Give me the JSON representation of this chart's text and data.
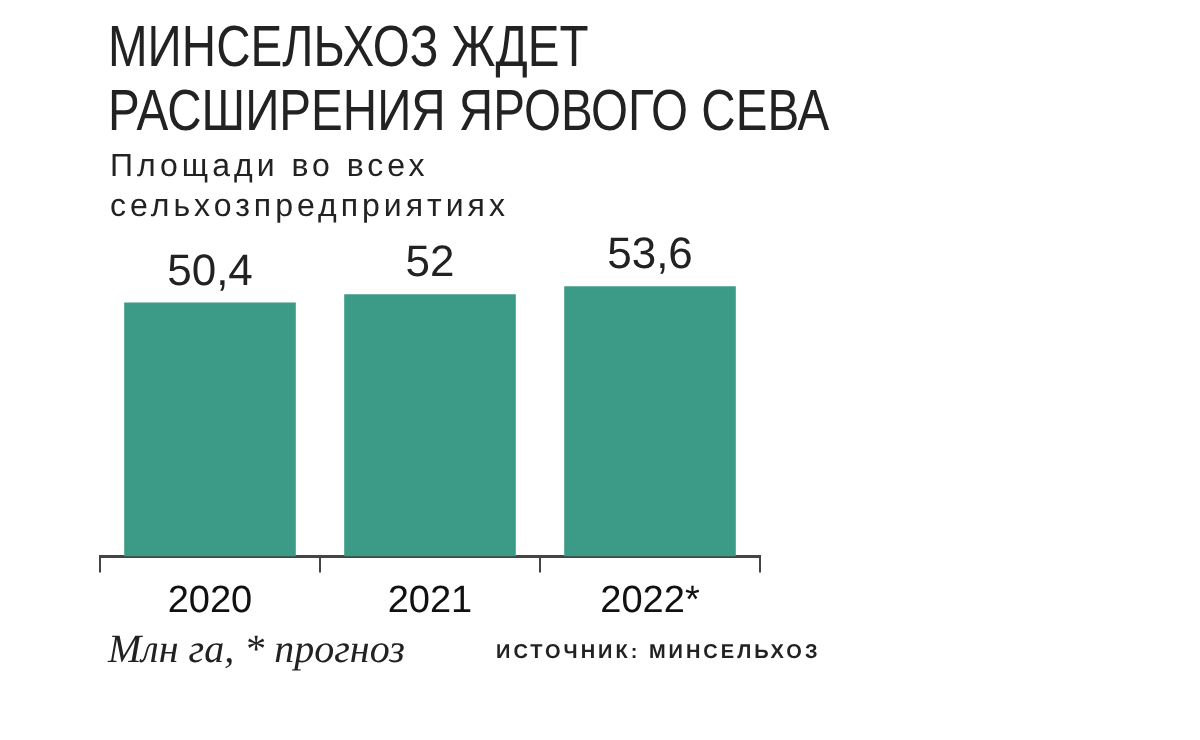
{
  "chart_data": {
    "type": "bar",
    "title": "МИНСЕЛЬХОЗ ЖДЕТ РАСШИРЕНИЯ ЯРОВОГО СЕВА",
    "subtitle": "Площади во всех сельхозпредприятиях",
    "categories": [
      "2020",
      "2021",
      "2022*"
    ],
    "values": [
      50.4,
      52,
      53.6
    ],
    "value_labels": [
      "50,4",
      "52",
      "53,6"
    ],
    "color": "#3b9b86",
    "legend": false,
    "grid": false,
    "tick_labels": "x",
    "annotations": [
      "Млн га, * прогноз",
      "ИСТОЧНИК: МИНСЕЛЬХОЗ"
    ]
  }
}
